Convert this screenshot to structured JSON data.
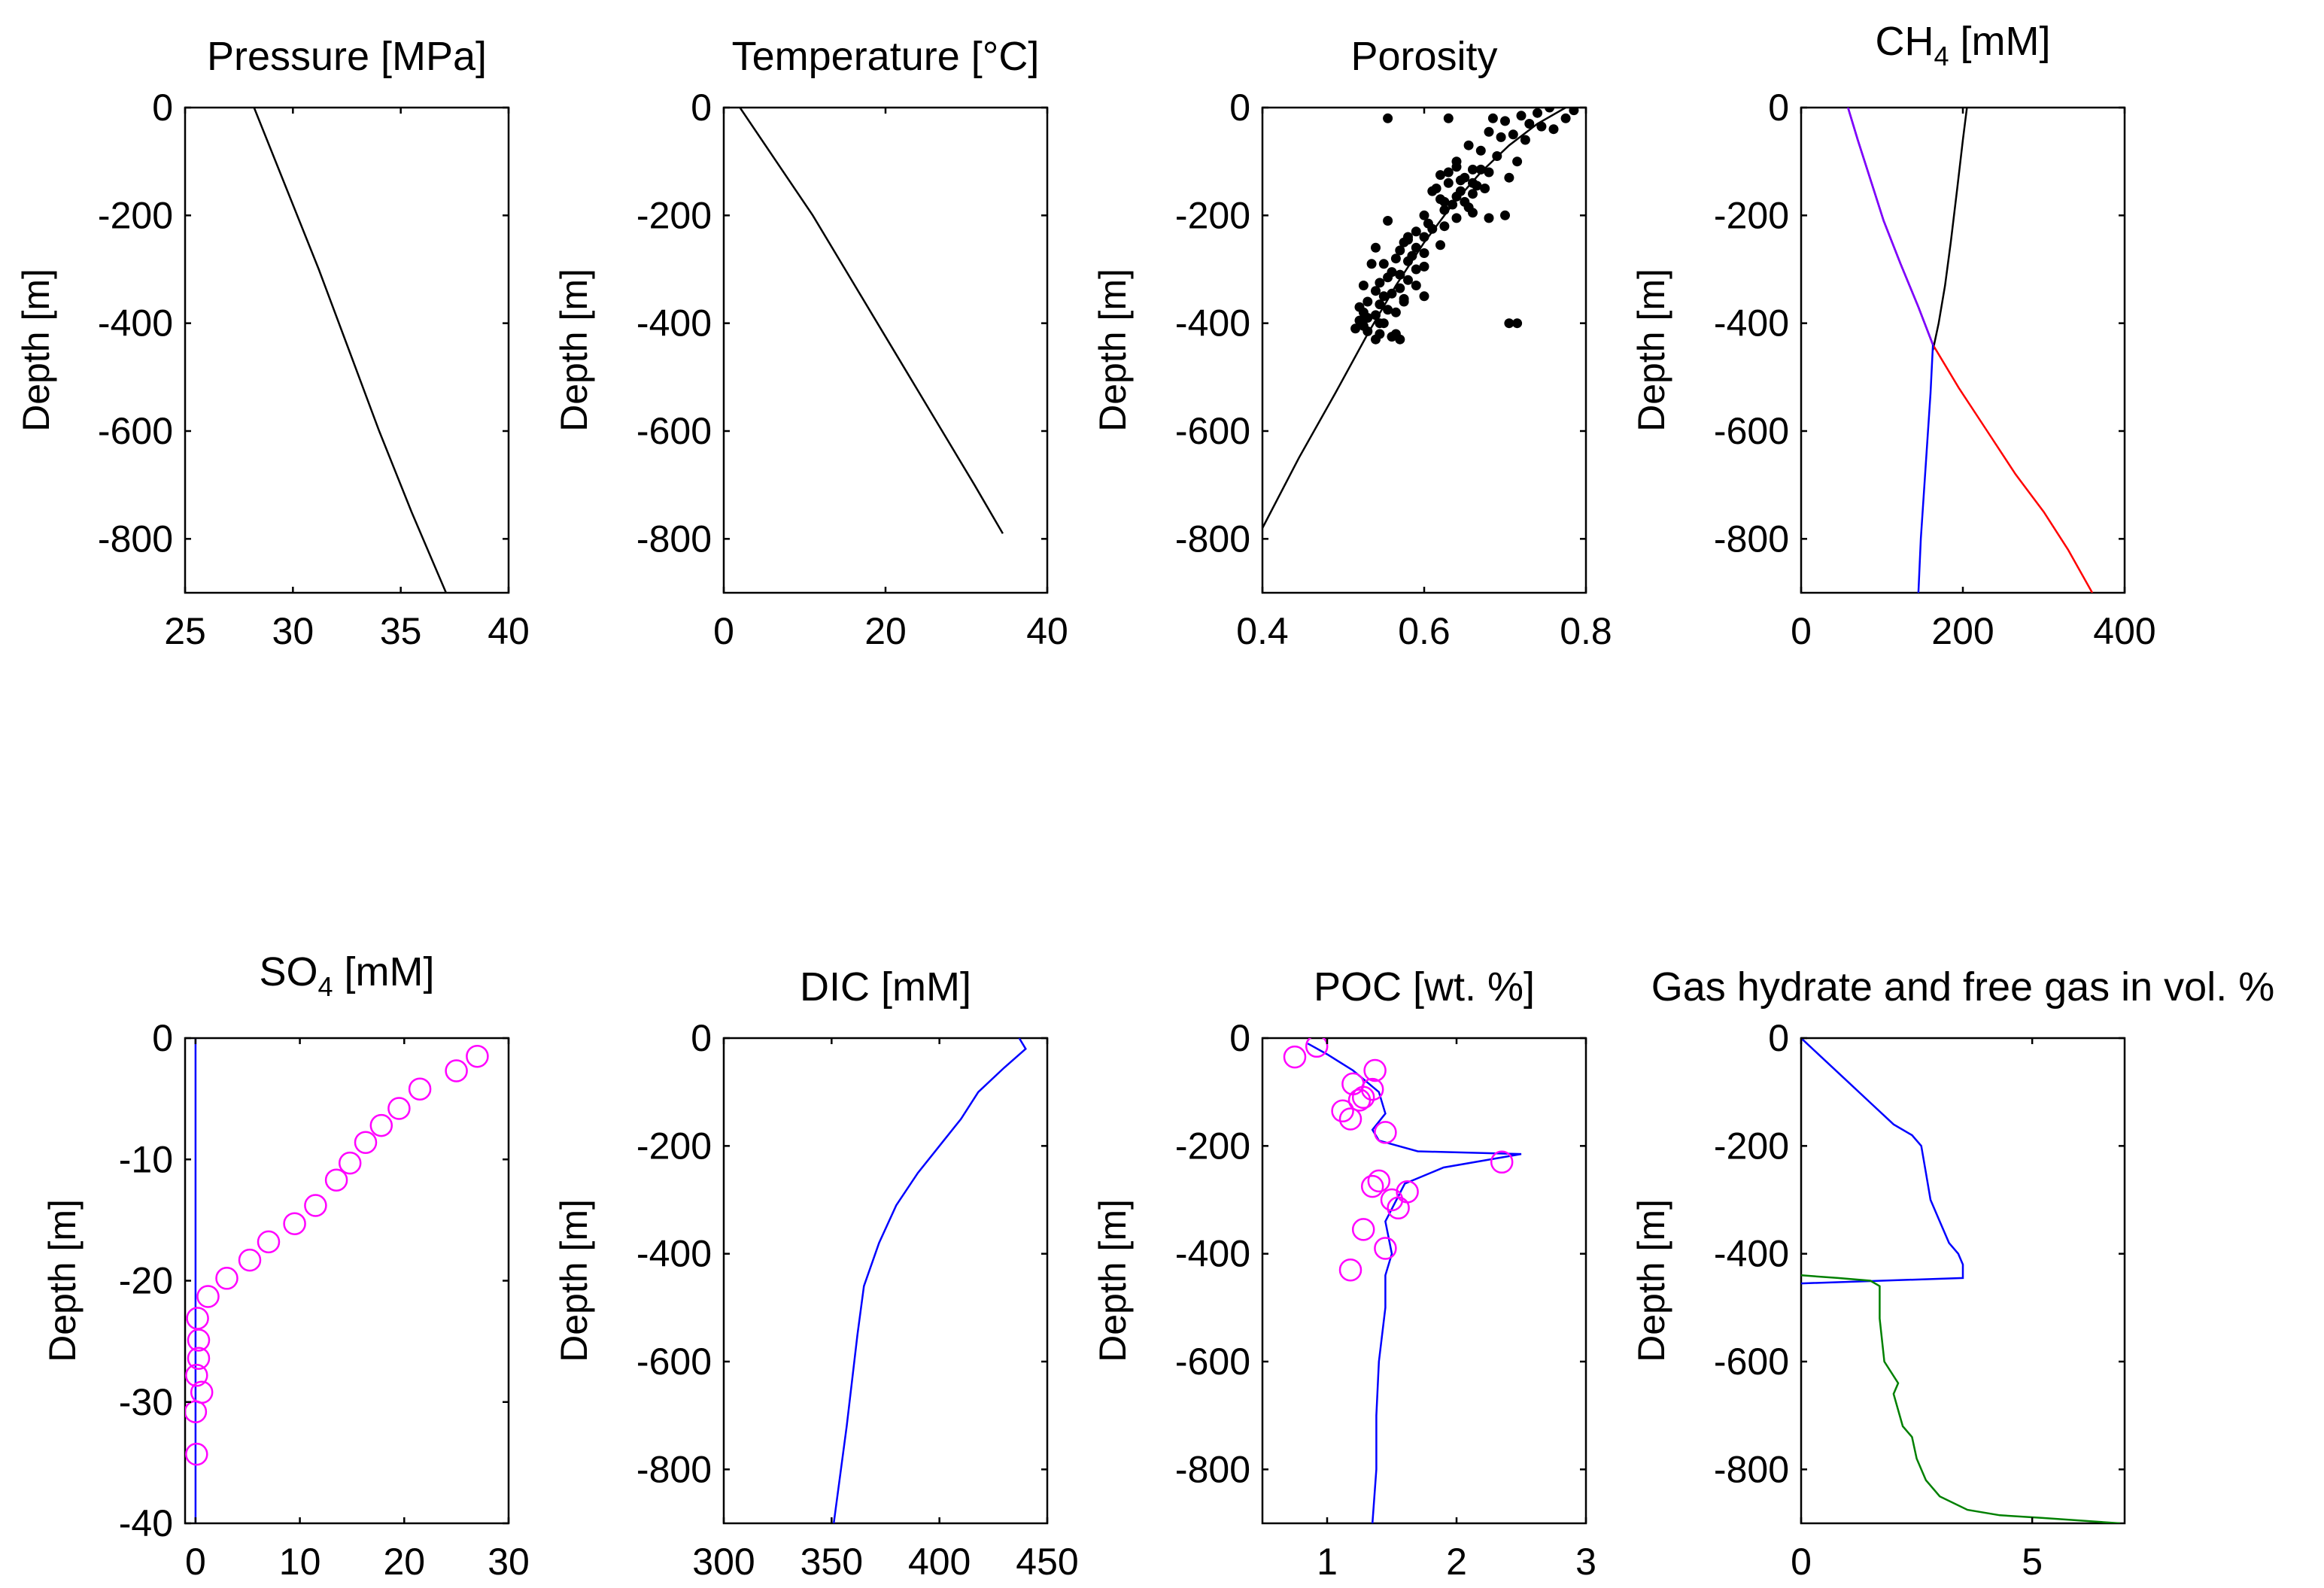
{
  "chart_data": [
    {
      "type": "line",
      "title": "Pressure [MPa]",
      "ylabel": "Depth [m]",
      "xlim": [
        25,
        40
      ],
      "ylim": [
        -900,
        0
      ],
      "xticks": [
        "25",
        "30",
        "35",
        "40"
      ],
      "yticks": [
        "0",
        "-200",
        "-400",
        "-600",
        "-800"
      ],
      "series": [
        {
          "color": "#000000",
          "style": "line",
          "x": [
            28.2,
            29.7,
            31.2,
            32.6,
            34.0,
            35.5,
            37.1
          ],
          "y": [
            0,
            -150,
            -300,
            -450,
            -600,
            -750,
            -900
          ]
        }
      ]
    },
    {
      "type": "line",
      "title": "Temperature [°C]",
      "ylabel": "Depth [m]",
      "xlim": [
        0,
        40
      ],
      "ylim": [
        -900,
        0
      ],
      "xticks": [
        "0",
        "20",
        "40"
      ],
      "yticks": [
        "0",
        "-200",
        "-400",
        "-600",
        "-800"
      ],
      "series": [
        {
          "color": "#000000",
          "style": "line",
          "x": [
            2,
            6.5,
            11,
            15,
            19,
            23,
            27,
            31,
            34.5
          ],
          "y": [
            0,
            -100,
            -200,
            -300,
            -400,
            -500,
            -600,
            -700,
            -790
          ]
        }
      ]
    },
    {
      "type": "scatter",
      "title": "Porosity",
      "ylabel": "Depth [m]",
      "xlim": [
        0.4,
        0.8
      ],
      "ylim": [
        -900,
        0
      ],
      "xticks": [
        "0.4",
        "0.6",
        "0.8"
      ],
      "yticks": [
        "0",
        "-200",
        "-400",
        "-600",
        "-800"
      ],
      "series": [
        {
          "color": "#000000",
          "style": "line",
          "x": [
            0.4,
            0.445,
            0.49,
            0.53,
            0.565,
            0.6,
            0.635,
            0.67,
            0.705,
            0.74,
            0.775
          ],
          "y": [
            -780,
            -650,
            -530,
            -420,
            -330,
            -250,
            -180,
            -120,
            -70,
            -30,
            0
          ]
        },
        {
          "color": "#000000",
          "style": "scatter",
          "marker": "dot",
          "x": [
            0.755,
            0.785,
            0.74,
            0.72,
            0.775,
            0.7,
            0.73,
            0.76,
            0.68,
            0.71,
            0.695,
            0.745,
            0.725,
            0.655,
            0.67,
            0.69,
            0.715,
            0.64,
            0.66,
            0.68,
            0.62,
            0.705,
            0.645,
            0.63,
            0.665,
            0.675,
            0.61,
            0.66,
            0.64,
            0.62,
            0.65,
            0.635,
            0.655,
            0.625,
            0.66,
            0.64,
            0.65,
            0.645,
            0.63,
            0.66,
            0.615,
            0.625,
            0.67,
            0.6,
            0.64,
            0.68,
            0.7,
            0.555,
            0.605,
            0.625,
            0.61,
            0.59,
            0.6,
            0.58,
            0.575,
            0.62,
            0.59,
            0.57,
            0.6,
            0.585,
            0.565,
            0.58,
            0.55,
            0.6,
            0.59,
            0.56,
            0.57,
            0.555,
            0.58,
            0.545,
            0.59,
            0.57,
            0.54,
            0.56,
            0.55,
            0.575,
            0.53,
            0.545,
            0.52,
            0.555,
            0.565,
            0.54,
            0.53,
            0.52,
            0.545,
            0.525,
            0.515,
            0.53,
            0.545,
            0.56,
            0.54,
            0.525,
            0.575,
            0.54,
            0.63,
            0.685,
            0.715,
            0.705,
            0.555,
            0.57,
            0.535,
            0.55,
            0.525,
            0.565,
            0.57,
            0.6,
            0.58
          ],
          "y": [
            0,
            -5,
            -10,
            -15,
            -20,
            -25,
            -30,
            -40,
            -45,
            -50,
            -55,
            -35,
            -60,
            -70,
            -80,
            -90,
            -100,
            -110,
            -115,
            -120,
            -125,
            -130,
            -135,
            -140,
            -145,
            -150,
            -155,
            -160,
            -165,
            -170,
            -175,
            -180,
            -185,
            -190,
            -195,
            -100,
            -130,
            -155,
            -120,
            -140,
            -150,
            -175,
            -115,
            -200,
            -205,
            -205,
            -200,
            -210,
            -215,
            -220,
            -225,
            -230,
            -240,
            -245,
            -250,
            -255,
            -260,
            -265,
            -270,
            -275,
            -280,
            -285,
            -290,
            -295,
            -300,
            -305,
            -310,
            -315,
            -320,
            -325,
            -330,
            -335,
            -340,
            -345,
            -350,
            -355,
            -360,
            -365,
            -370,
            -375,
            -380,
            -385,
            -390,
            -395,
            -400,
            -405,
            -410,
            -415,
            -420,
            -425,
            -430,
            -380,
            -360,
            -260,
            -20,
            -20,
            -400,
            -400,
            -20,
            -310,
            -290,
            -400,
            -330,
            -420,
            -430,
            -350,
            -240
          ]
        }
      ]
    },
    {
      "type": "line",
      "title": "CH",
      "title_sub": "4",
      "title_suffix": " [mM]",
      "ylabel": "Depth [m]",
      "xlim": [
        0,
        400
      ],
      "ylim": [
        -900,
        0
      ],
      "xticks": [
        "0",
        "200",
        "400"
      ],
      "yticks": [
        "0",
        "-200",
        "-400",
        "-600",
        "-800"
      ],
      "series": [
        {
          "color": "#000000",
          "style": "line",
          "x": [
            205,
            200,
            193,
            185,
            178,
            170,
            163
          ],
          "y": [
            0,
            -60,
            -150,
            -250,
            -330,
            -400,
            -450
          ]
        },
        {
          "color": "#ff0000",
          "style": "line",
          "x": [
            58,
            70,
            85,
            102,
            123,
            145,
            163,
            195,
            230,
            265,
            300,
            330,
            360
          ],
          "y": [
            0,
            -60,
            -130,
            -210,
            -290,
            -370,
            -440,
            -520,
            -600,
            -680,
            -750,
            -820,
            -900
          ]
        },
        {
          "color": "#0000ff",
          "style": "line",
          "x": [
            58,
            70,
            85,
            102,
            123,
            145,
            163,
            160,
            156,
            152,
            148,
            145
          ],
          "y": [
            0,
            -60,
            -130,
            -210,
            -290,
            -370,
            -440,
            -530,
            -620,
            -710,
            -800,
            -900
          ]
        },
        {
          "color": "#8000ff",
          "style": "line",
          "x": [
            58,
            70,
            85,
            102,
            123,
            145,
            163
          ],
          "y": [
            0,
            -60,
            -130,
            -210,
            -290,
            -370,
            -440
          ]
        }
      ]
    },
    {
      "type": "scatter",
      "title": "SO",
      "title_sub": "4",
      "title_suffix": " [mM]",
      "ylabel": "Depth [m]",
      "xlim": [
        -1,
        30
      ],
      "ylim": [
        -40,
        0
      ],
      "xticks": [
        "0",
        "10",
        "20",
        "30"
      ],
      "yticks": [
        "0",
        "-10",
        "-20",
        "-30",
        "-40"
      ],
      "series": [
        {
          "color": "#0000ff",
          "style": "line",
          "x": [
            0,
            0
          ],
          "y": [
            0,
            -40
          ]
        },
        {
          "color": "#ff00ff",
          "style": "scatter",
          "marker": "circle",
          "x": [
            27,
            25,
            21.5,
            19.5,
            17.8,
            16.3,
            14.8,
            13.5,
            11.5,
            9.5,
            7,
            5.2,
            3,
            1.2,
            0.2,
            0.3,
            0.3,
            0.1,
            0.6,
            0,
            0.1
          ],
          "y": [
            -1.5,
            -2.7,
            -4.2,
            -5.8,
            -7.2,
            -8.6,
            -10.3,
            -11.7,
            -13.8,
            -15.3,
            -16.8,
            -18.3,
            -19.8,
            -21.3,
            -23.1,
            -24.9,
            -26.4,
            -27.8,
            -29.2,
            -30.8,
            -34.3
          ]
        }
      ]
    },
    {
      "type": "line",
      "title": "DIC [mM]",
      "ylabel": "Depth [m]",
      "xlim": [
        300,
        450
      ],
      "ylim": [
        -900,
        0
      ],
      "xticks": [
        "300",
        "350",
        "400",
        "450"
      ],
      "yticks": [
        "0",
        "-200",
        "-400",
        "-600",
        "-800"
      ],
      "series": [
        {
          "color": "#0000ff",
          "style": "line",
          "x": [
            437,
            440,
            430,
            418,
            410,
            400,
            390,
            380,
            372,
            365,
            362,
            357,
            351
          ],
          "y": [
            0,
            -20,
            -55,
            -100,
            -150,
            -200,
            -250,
            -310,
            -380,
            -460,
            -550,
            -720,
            -900
          ]
        }
      ]
    },
    {
      "type": "scatter",
      "title": "POC [wt. %]",
      "ylabel": "Depth [m]",
      "xlim": [
        0.5,
        3
      ],
      "ylim": [
        -900,
        0
      ],
      "xticks": [
        "1",
        "2",
        "3"
      ],
      "yticks": [
        "0",
        "-200",
        "-400",
        "-600",
        "-800"
      ],
      "series": [
        {
          "color": "#0000ff",
          "style": "line",
          "x": [
            0.85,
            1.0,
            1.2,
            1.4,
            1.45,
            1.35,
            1.4,
            1.7,
            2.5,
            1.9,
            1.6,
            1.45,
            1.5,
            1.45,
            1.45,
            1.4,
            1.38,
            1.38,
            1.35
          ],
          "y": [
            -10,
            -30,
            -60,
            -100,
            -140,
            -170,
            -190,
            -210,
            -215,
            -240,
            -270,
            -340,
            -400,
            -440,
            -500,
            -600,
            -700,
            -800,
            -900
          ]
        },
        {
          "color": "#ff00ff",
          "style": "scatter",
          "marker": "circle",
          "x": [
            0.92,
            0.75,
            1.37,
            1.2,
            1.35,
            1.28,
            1.25,
            1.12,
            1.18,
            1.45,
            2.35,
            1.4,
            1.35,
            1.62,
            1.5,
            1.55,
            1.28,
            1.45,
            1.18
          ],
          "y": [
            -15,
            -35,
            -60,
            -85,
            -95,
            -110,
            -115,
            -135,
            -150,
            -175,
            -230,
            -265,
            -275,
            -285,
            -300,
            -315,
            -355,
            -390,
            -430
          ]
        }
      ]
    },
    {
      "type": "line",
      "title": "Gas hydrate and free gas in vol. %",
      "ylabel": "Depth [m]",
      "xlim": [
        0,
        7
      ],
      "ylim": [
        -900,
        0
      ],
      "xticks": [
        "0",
        "5"
      ],
      "yticks": [
        "0",
        "-200",
        "-400",
        "-600",
        "-800"
      ],
      "series": [
        {
          "color": "#0000ff",
          "style": "line",
          "x": [
            0,
            0.5,
            1.0,
            1.5,
            2.0,
            2.4,
            2.6,
            2.7,
            2.8,
            3.0,
            3.2,
            3.4,
            3.5,
            3.5,
            0
          ],
          "y": [
            0,
            -40,
            -80,
            -120,
            -160,
            -180,
            -200,
            -250,
            -300,
            -340,
            -380,
            -400,
            -420,
            -445,
            -455
          ]
        },
        {
          "color": "#008000",
          "style": "line",
          "x": [
            0,
            0.8,
            1.5,
            1.7,
            1.7,
            1.8,
            2.1,
            2.0,
            2.1,
            2.2,
            2.4,
            2.5,
            2.7,
            3.0,
            3.6,
            4.3,
            5.2,
            6.9
          ],
          "y": [
            -440,
            -445,
            -450,
            -460,
            -520,
            -600,
            -640,
            -660,
            -690,
            -720,
            -740,
            -780,
            -820,
            -850,
            -875,
            -885,
            -890,
            -900
          ]
        }
      ]
    }
  ]
}
